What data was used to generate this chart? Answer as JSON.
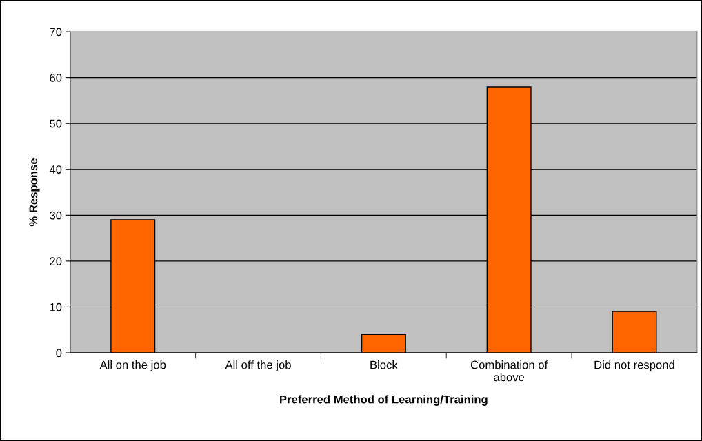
{
  "chart_data": {
    "type": "bar",
    "xlabel": "Preferred Method of Learning/Training",
    "ylabel": "% Response",
    "categories": [
      "All on the job",
      "All off the job",
      "Block",
      "Combination of above",
      "Did not respond"
    ],
    "values": [
      29,
      0,
      4,
      58,
      9
    ],
    "color": "#ff6600",
    "ylim": [
      0,
      70
    ],
    "yticks": [
      0,
      10,
      20,
      30,
      40,
      50,
      60,
      70
    ],
    "grid": "y",
    "legend": false
  }
}
